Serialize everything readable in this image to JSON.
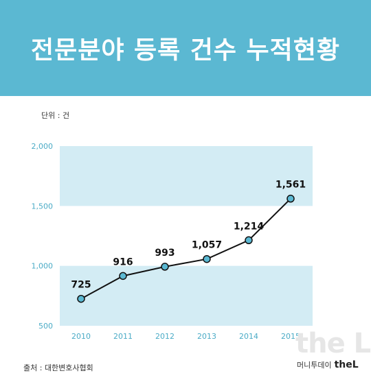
{
  "header": {
    "title": "전문분야 등록 건수 누적현황"
  },
  "unit_label": "단위 : 건",
  "footer": {
    "source": "출처 : 대한변호사협회",
    "brand_name": "머니투데이",
    "brand_logo": "theL"
  },
  "colors": {
    "header_bg": "#5bb8d2",
    "band": "#d3ecf4",
    "axis_text": "#4aabc6",
    "line": "#111111",
    "marker_fill": "#5bb8d2"
  },
  "chart_data": {
    "type": "line",
    "title": "",
    "xlabel": "",
    "ylabel": "",
    "ylim": [
      500,
      2000
    ],
    "yticks": [
      500,
      1000,
      1500,
      2000
    ],
    "ytick_labels": [
      "500",
      "1,000",
      "1,500",
      "2,000"
    ],
    "categories": [
      "2010",
      "2011",
      "2012",
      "2013",
      "2014",
      "2015"
    ],
    "series": [
      {
        "values": [
          725,
          916,
          993,
          1057,
          1214,
          1561
        ],
        "labels": [
          "725",
          "916",
          "993",
          "1,057",
          "1,214",
          "1,561"
        ]
      }
    ],
    "bands": [
      [
        500,
        1000
      ],
      [
        1500,
        2000
      ]
    ],
    "grid": false,
    "legend": "none"
  }
}
